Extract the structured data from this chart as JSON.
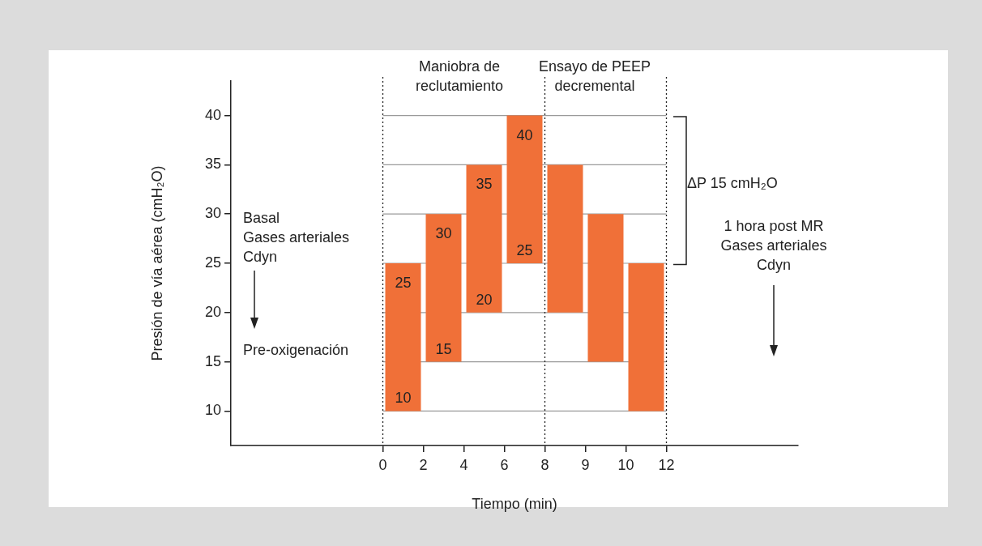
{
  "chart_data": {
    "type": "bar",
    "xlabel": "Tiempo (min)",
    "ylabel": "Presión de vía aérea (cmH₂O)",
    "categories": [
      null,
      null,
      null,
      null,
      null,
      null,
      null,
      "0",
      null,
      "2",
      null,
      "4",
      null,
      "6",
      null,
      "8",
      null,
      "9",
      null,
      "10",
      null,
      "12",
      null,
      null,
      null,
      null,
      null,
      null
    ],
    "base": [
      null,
      null,
      null,
      null,
      null,
      null,
      null,
      null,
      10,
      null,
      15,
      null,
      20,
      null,
      25,
      null,
      20,
      null,
      15,
      null,
      10,
      null,
      null,
      null,
      null,
      null,
      null,
      null
    ],
    "values": [
      null,
      null,
      null,
      null,
      null,
      null,
      null,
      null,
      15,
      null,
      15,
      null,
      15,
      null,
      15,
      null,
      15,
      null,
      15,
      null,
      15,
      null,
      null,
      null,
      null,
      null,
      null,
      null
    ],
    "color": "#f07038",
    "ylim": [
      6.5,
      43.5
    ],
    "yticks": [
      10,
      15,
      20,
      25,
      30,
      35,
      40
    ],
    "legend": false,
    "ref_lines": [
      {
        "axis": "y",
        "value": 10,
        "color": "#9a9a9a"
      },
      {
        "axis": "y",
        "value": 15,
        "color": "#9a9a9a"
      },
      {
        "axis": "y",
        "value": 20,
        "color": "#9a9a9a"
      },
      {
        "axis": "y",
        "value": 25,
        "color": "#9a9a9a"
      },
      {
        "axis": "y",
        "value": 30,
        "color": "#9a9a9a"
      },
      {
        "axis": "y",
        "value": 35,
        "color": "#9a9a9a"
      },
      {
        "axis": "y",
        "value": 40,
        "color": "#9a9a9a"
      },
      {
        "axis": "x",
        "value": "0",
        "line_style": "dotted",
        "color": "#222222"
      },
      {
        "axis": "x",
        "value": "8",
        "line_style": "dotted",
        "color": "#222222"
      },
      {
        "axis": "x",
        "value": "12",
        "line_style": "dotted",
        "color": "#222222"
      }
    ],
    "annotations": [
      {
        "text": "25",
        "y": 25
      },
      {
        "text": "10",
        "y": 10
      },
      {
        "text": "30",
        "y": 30
      },
      {
        "text": "15",
        "y": 15
      },
      {
        "text": "35",
        "y": 35
      },
      {
        "text": "20",
        "y": 20
      },
      {
        "text": "40",
        "y": 40
      },
      {
        "text": "25",
        "y": 25
      },
      "Maniobra de\nreclutamiento",
      "Ensayo de PEEP\ndecremental",
      "ΔP 15 cmH₂O",
      "Basal\nGases arteriales\nCdyn",
      "Pre-oxigenación",
      "1 hora post MR\nGases arteriales\nCdyn"
    ]
  }
}
